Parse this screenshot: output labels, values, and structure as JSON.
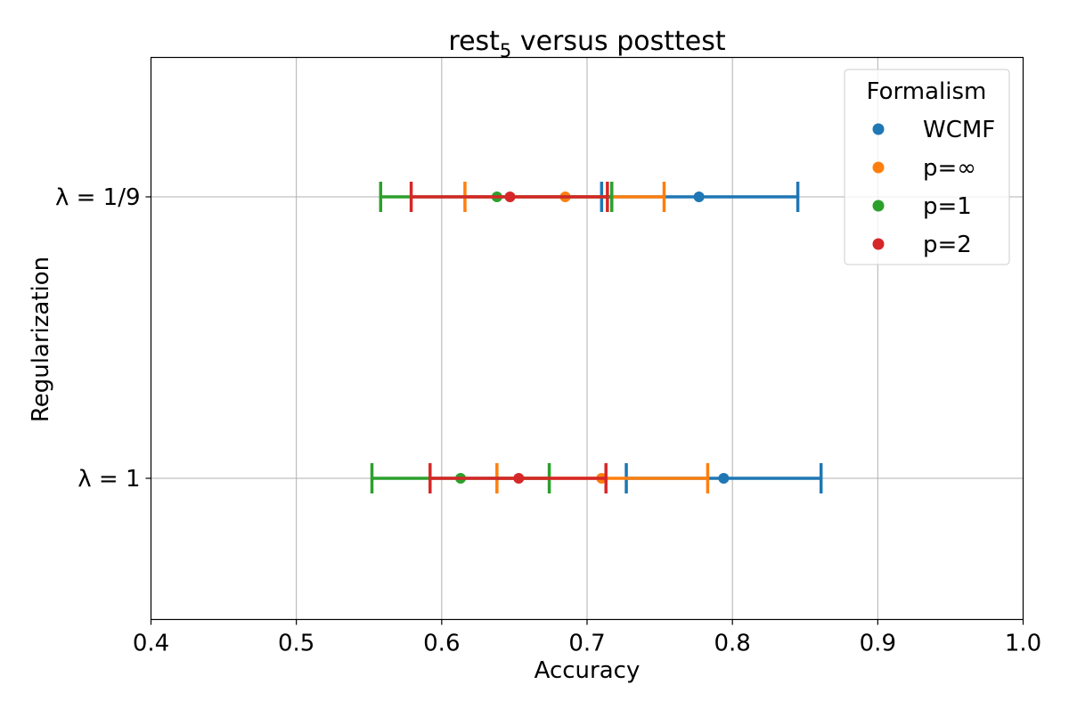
{
  "chart_data": {
    "type": "scatter",
    "title_main": "rest",
    "title_sub": "5",
    "title_rest": " versus posttest",
    "xlabel": "Accuracy",
    "ylabel": "Regularization",
    "xlim": [
      0.4,
      1.0
    ],
    "x_ticks": [
      0.4,
      0.5,
      0.6,
      0.7,
      0.8,
      0.9,
      1.0
    ],
    "x_tick_labels": [
      "0.4",
      "0.5",
      "0.6",
      "0.7",
      "0.8",
      "0.9",
      "1.0"
    ],
    "categories": [
      "λ = 1/9",
      "λ = 1"
    ],
    "grid": true,
    "legend": {
      "title": "Formalism",
      "placement": "top-right"
    },
    "series": [
      {
        "name": "WCMF",
        "color": "#1f77b4",
        "points": [
          {
            "category": 0,
            "value": 0.777,
            "low": 0.71,
            "high": 0.845
          },
          {
            "category": 1,
            "value": 0.794,
            "low": 0.727,
            "high": 0.861
          }
        ]
      },
      {
        "name": "p=∞",
        "color": "#ff7f0e",
        "points": [
          {
            "category": 0,
            "value": 0.685,
            "low": 0.616,
            "high": 0.753
          },
          {
            "category": 1,
            "value": 0.71,
            "low": 0.638,
            "high": 0.783
          }
        ]
      },
      {
        "name": "p=1",
        "color": "#2ca02c",
        "points": [
          {
            "category": 0,
            "value": 0.638,
            "low": 0.558,
            "high": 0.717
          },
          {
            "category": 1,
            "value": 0.613,
            "low": 0.552,
            "high": 0.674
          }
        ]
      },
      {
        "name": "p=2",
        "color": "#d62728",
        "points": [
          {
            "category": 0,
            "value": 0.647,
            "low": 0.579,
            "high": 0.714
          },
          {
            "category": 1,
            "value": 0.653,
            "low": 0.592,
            "high": 0.713
          }
        ]
      }
    ]
  }
}
